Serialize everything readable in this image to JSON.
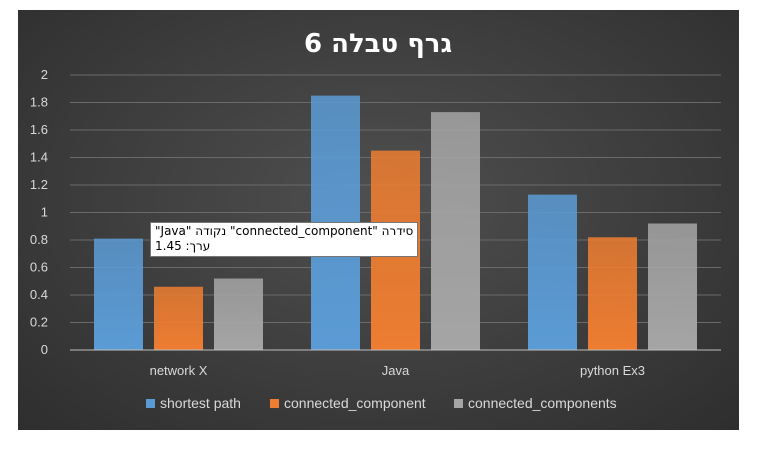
{
  "chart_data": {
    "type": "bar",
    "title": "גרף טבלה 6",
    "categories": [
      "network X",
      "Java",
      "python Ex3"
    ],
    "series": [
      {
        "name": "shortest path",
        "values": [
          0.81,
          1.85,
          1.13
        ]
      },
      {
        "name": "connected_component",
        "values": [
          0.46,
          1.45,
          0.82
        ]
      },
      {
        "name": "connected_components",
        "values": [
          0.52,
          1.73,
          0.92
        ]
      }
    ],
    "ylim": [
      0,
      2
    ],
    "yticks": [
      "0",
      "0.2",
      "0.4",
      "0.6",
      "0.8",
      "1",
      "1.2",
      "1.4",
      "1.6",
      "1.8",
      "2"
    ],
    "grid": true,
    "legend_position": "bottom",
    "colors": {
      "shortest path": "#5b9bd5",
      "connected_component": "#ed7d31",
      "connected_components": "#a5a5a5"
    }
  },
  "tooltip": {
    "line1": "סידרה \"connected_component\" נקודה \"Java\"",
    "line2": "ערך: 1.45"
  }
}
